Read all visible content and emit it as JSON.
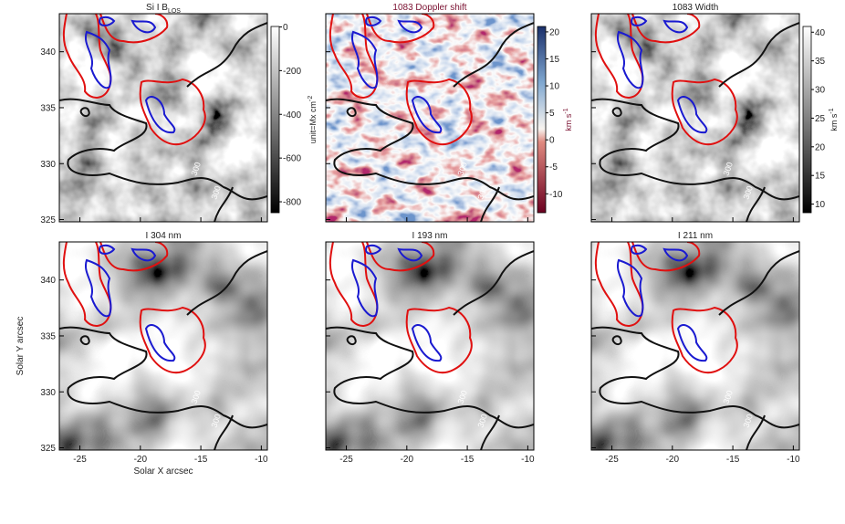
{
  "chart_data": [
    {
      "type": "image",
      "title": "Si I B",
      "title_subscript": "LOS",
      "title_color": "#222222",
      "colormap": "gray",
      "xlim": [
        -26.7,
        -9.5
      ],
      "xticks": [
        -25,
        -20,
        -15,
        -10
      ],
      "ylim": [
        324.8,
        343.4
      ],
      "yticks": [
        325,
        330,
        335,
        340
      ],
      "colorbar": {
        "label": "unit=Mx cm",
        "label_superscript": "-2",
        "label_color": "#222222",
        "clim": [
          -850,
          2
        ],
        "ticks": [
          0,
          -200,
          -400,
          -600,
          -800
        ]
      },
      "contour_labels": [
        "300",
        "300"
      ]
    },
    {
      "type": "image",
      "title": "1083 Doppler shift",
      "title_color": "#7a1030",
      "colormap": "RdBu",
      "xlim": [
        -26.7,
        -9.5
      ],
      "xticks": [
        -25,
        -20,
        -15,
        -10
      ],
      "ylim": [
        324.8,
        343.4
      ],
      "yticks": [
        325,
        330,
        335,
        340
      ],
      "colorbar": {
        "label": "km s",
        "label_superscript": "-1",
        "label_color": "#7a1030",
        "clim": [
          -13.5,
          21
        ],
        "ticks": [
          20,
          15,
          10,
          5,
          0,
          -5,
          -10
        ]
      },
      "contour_labels": [
        "300",
        "300"
      ]
    },
    {
      "type": "image",
      "title": "1083 Width",
      "title_color": "#222222",
      "colormap": "gray",
      "xlim": [
        -26.7,
        -9.5
      ],
      "xticks": [
        -25,
        -20,
        -15,
        -10
      ],
      "ylim": [
        324.8,
        343.4
      ],
      "yticks": [
        325,
        330,
        335,
        340
      ],
      "colorbar": {
        "label": "km s",
        "label_superscript": "-1",
        "label_color": "#222222",
        "clim": [
          8.5,
          41
        ],
        "ticks": [
          40,
          35,
          30,
          25,
          20,
          15,
          10
        ]
      },
      "contour_labels": [
        "300",
        "300"
      ]
    },
    {
      "type": "image",
      "title": "I 304 nm",
      "title_color": "#222222",
      "colormap": "gray",
      "xlim": [
        -26.7,
        -9.5
      ],
      "xticks": [
        -25,
        -20,
        -15,
        -10
      ],
      "ylim": [
        324.8,
        343.4
      ],
      "yticks": [
        325,
        330,
        335,
        340
      ],
      "x_label": "Solar X arcsec",
      "y_label": "Solar Y arcsec",
      "contour_labels": [
        "300",
        "300"
      ]
    },
    {
      "type": "image",
      "title": "I 193 nm",
      "title_color": "#222222",
      "colormap": "gray",
      "xlim": [
        -26.7,
        -9.5
      ],
      "xticks": [
        -25,
        -20,
        -15,
        -10
      ],
      "ylim": [
        324.8,
        343.4
      ],
      "yticks": [
        325,
        330,
        335,
        340
      ],
      "contour_labels": [
        "300",
        "300"
      ]
    },
    {
      "type": "image",
      "title": "I 211 nm",
      "title_color": "#222222",
      "colormap": "gray",
      "xlim": [
        -26.7,
        -9.5
      ],
      "xticks": [
        -25,
        -20,
        -15,
        -10
      ],
      "ylim": [
        324.8,
        343.4
      ],
      "yticks": [
        325,
        330,
        335,
        340
      ],
      "contour_labels": [
        "300",
        "300"
      ]
    }
  ]
}
